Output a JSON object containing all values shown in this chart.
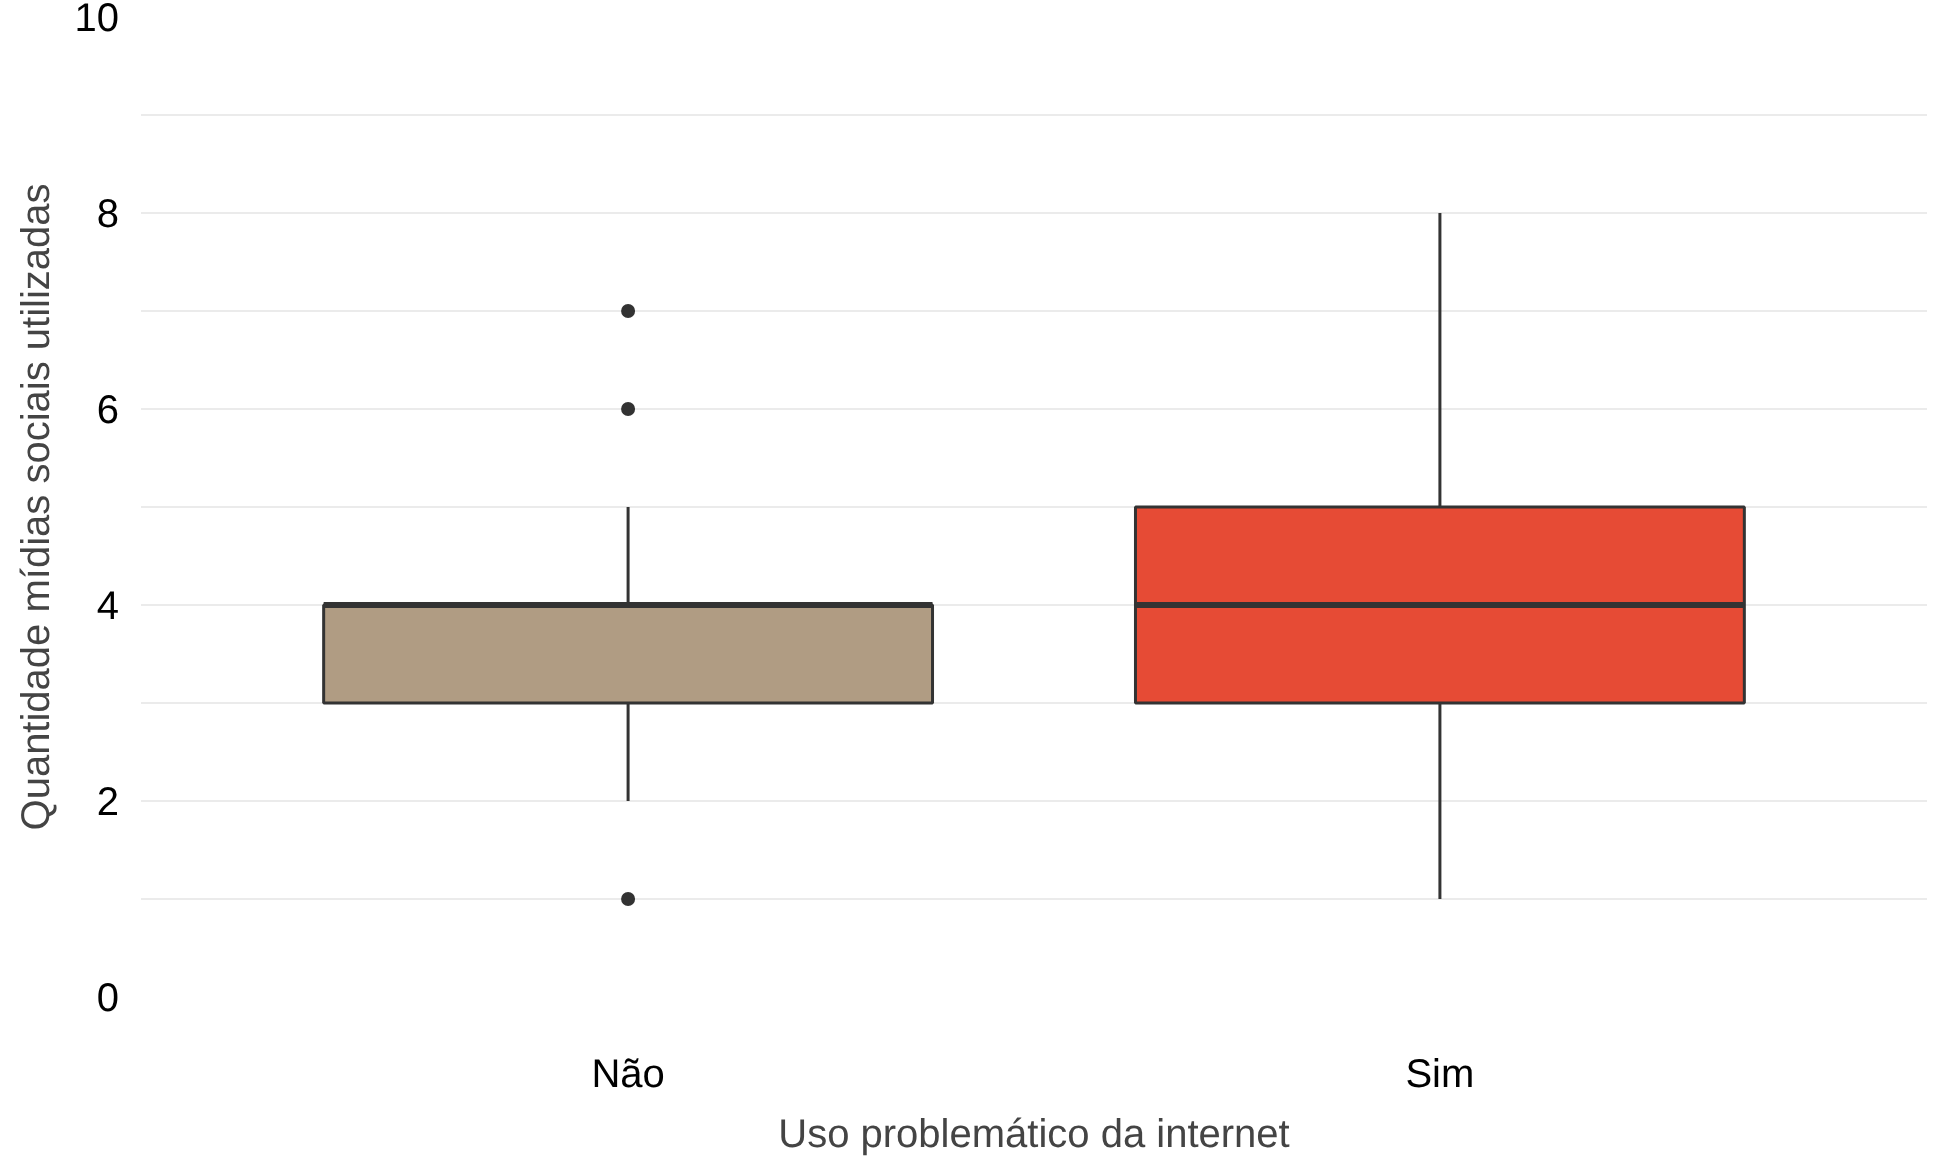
{
  "chart_data": {
    "type": "box",
    "xlabel": "Uso problemático da internet",
    "ylabel": "Quantidade mídias sociais utilizadas",
    "categories": [
      "Não",
      "Sim"
    ],
    "colors": [
      "#b09c83",
      "#e64b35"
    ],
    "boxes": [
      {
        "low": 2,
        "q1": 3,
        "median": 4,
        "q3": 4,
        "high": 5,
        "outliers": [
          1,
          6,
          7
        ]
      },
      {
        "low": 1,
        "q1": 3,
        "median": 4,
        "q3": 5,
        "high": 8
      }
    ],
    "ylim": [
      0,
      10
    ],
    "yticks": [
      0,
      2,
      4,
      6,
      8,
      10
    ],
    "grid": "y"
  }
}
